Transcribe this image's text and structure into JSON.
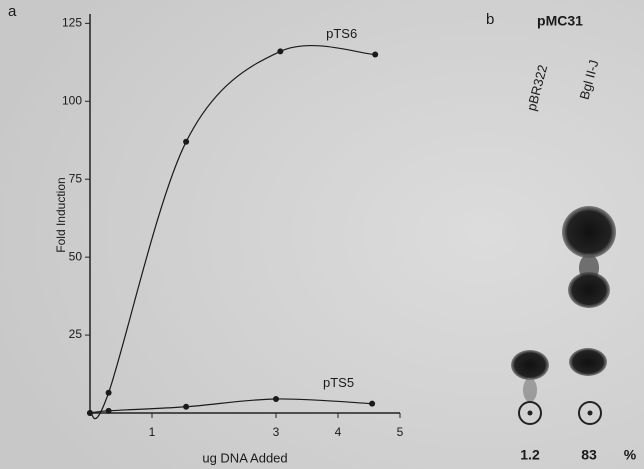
{
  "chart_data": {
    "type": "line",
    "label": "a",
    "ylabel": "Fold Induction",
    "xlabel": "ug DNA Added",
    "xlim": [
      0,
      5
    ],
    "xticks": [
      1,
      3,
      4,
      5
    ],
    "ylim": [
      0,
      128
    ],
    "yticks": [
      25,
      50,
      75,
      100,
      125
    ],
    "series": [
      {
        "name": "pTS6",
        "color": "#1a1a1a",
        "x": [
          0,
          0.3,
          1.55,
          3.07,
          4.6
        ],
        "values": [
          0,
          6.5,
          87,
          116,
          115
        ]
      },
      {
        "name": "pTS5",
        "color": "#1a1a1a",
        "x": [
          0,
          0.3,
          1.55,
          3.0,
          4.55
        ],
        "values": [
          0,
          0.7,
          2,
          4.5,
          3
        ]
      }
    ]
  },
  "panel_b": {
    "label": "b",
    "title": "pMC31",
    "lanes": [
      "pBR322",
      "Bgl II-J"
    ],
    "values": [
      1.2,
      83
    ],
    "unit": "%"
  }
}
